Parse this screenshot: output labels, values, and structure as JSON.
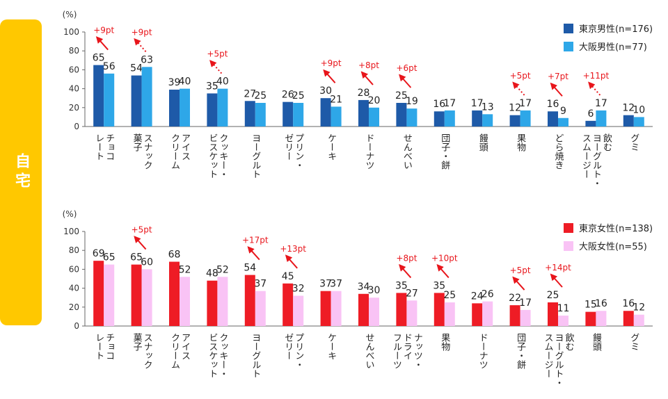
{
  "side_label": "自宅",
  "colors": {
    "tab": "#ffc800",
    "tokyo_male": "#1e5aa8",
    "osaka_male": "#2ea7e8",
    "tokyo_female": "#ee1c25",
    "osaka_female": "#f9c3f5",
    "diff": "#e8151b"
  },
  "chart_data": [
    {
      "type": "bar",
      "unit_label": "(%)",
      "ylim": [
        0,
        100
      ],
      "yticks": [
        0,
        20,
        40,
        60,
        80,
        100
      ],
      "legend_position": "top-right",
      "categories": [
        "チョコ\nレート",
        "スナック\n菓子",
        "アイス\nクリーム",
        "クッキー・\nビスケット",
        "ヨーグルト",
        "プリン・\nゼリー",
        "ケーキ",
        "ドーナツ",
        "せんべい",
        "団子・餅",
        "饅頭",
        "果物",
        "どら焼き",
        "飲む\nヨーグルト・\nスムージー",
        "グミ"
      ],
      "series": [
        {
          "name": "東京男性(n=176)",
          "values": [
            65,
            54,
            39,
            35,
            27,
            26,
            30,
            28,
            25,
            16,
            17,
            12,
            16,
            6,
            12
          ]
        },
        {
          "name": "大阪男性(n=77)",
          "values": [
            56,
            63,
            40,
            40,
            25,
            25,
            21,
            20,
            19,
            17,
            13,
            17,
            9,
            17,
            10
          ]
        }
      ],
      "differences": [
        {
          "category_index": 0,
          "label": "+9pt",
          "style": "solid"
        },
        {
          "category_index": 1,
          "label": "+9pt",
          "style": "dotted"
        },
        {
          "category_index": 3,
          "label": "+5pt",
          "style": "dotted"
        },
        {
          "category_index": 6,
          "label": "+9pt",
          "style": "solid"
        },
        {
          "category_index": 7,
          "label": "+8pt",
          "style": "solid"
        },
        {
          "category_index": 8,
          "label": "+6pt",
          "style": "solid"
        },
        {
          "category_index": 11,
          "label": "+5pt",
          "style": "dotted"
        },
        {
          "category_index": 12,
          "label": "+7pt",
          "style": "solid"
        },
        {
          "category_index": 13,
          "label": "+11pt",
          "style": "dotted"
        }
      ]
    },
    {
      "type": "bar",
      "unit_label": "(%)",
      "ylim": [
        0,
        100
      ],
      "yticks": [
        0,
        20,
        40,
        60,
        80,
        100
      ],
      "legend_position": "top-right",
      "categories": [
        "チョコ\nレート",
        "スナック\n菓子",
        "アイス\nクリーム",
        "クッキー・\nビスケット",
        "ヨーグルト",
        "プリン・\nゼリー",
        "ケーキ",
        "せんべい",
        "ナッツ・\nドライ\nフルーツ",
        "果物",
        "ドーナツ",
        "団子・餅",
        "飲む\nヨーグルト・\nスムージー",
        "饅頭",
        "グミ"
      ],
      "series": [
        {
          "name": "東京女性(n=138)",
          "values": [
            69,
            65,
            68,
            48,
            54,
            45,
            37,
            34,
            35,
            35,
            24,
            22,
            25,
            15,
            16
          ]
        },
        {
          "name": "大阪女性(n=55)",
          "values": [
            65,
            60,
            52,
            52,
            37,
            32,
            37,
            30,
            27,
            25,
            26,
            17,
            11,
            16,
            12
          ]
        }
      ],
      "differences": [
        {
          "category_index": 1,
          "label": "+5pt",
          "style": "solid"
        },
        {
          "category_index": 4,
          "label": "+17pt",
          "style": "solid"
        },
        {
          "category_index": 5,
          "label": "+13pt",
          "style": "solid"
        },
        {
          "category_index": 8,
          "label": "+8pt",
          "style": "solid"
        },
        {
          "category_index": 9,
          "label": "+10pt",
          "style": "solid"
        },
        {
          "category_index": 11,
          "label": "+5pt",
          "style": "solid"
        },
        {
          "category_index": 12,
          "label": "+14pt",
          "style": "solid"
        }
      ]
    }
  ]
}
